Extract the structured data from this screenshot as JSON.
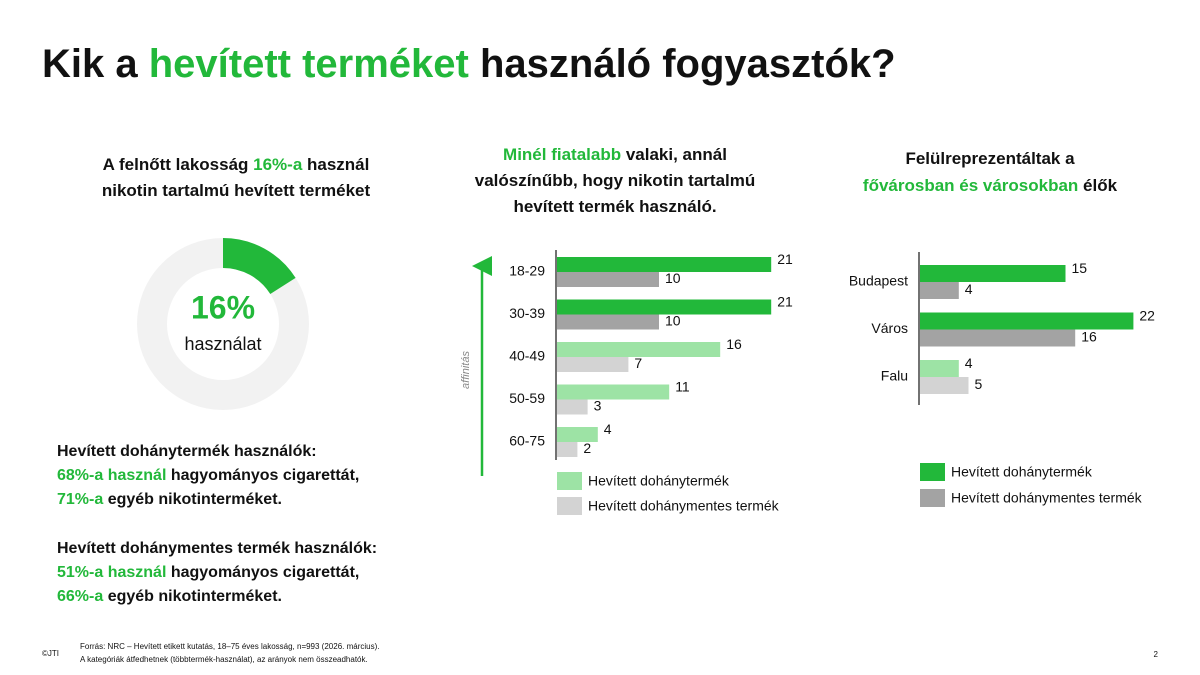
{
  "title": [
    [
      {
        "t": "Kik a "
      },
      {
        "t": "hevített terméket",
        "hl": true
      },
      {
        "t": " használó fogyasztók?"
      }
    ]
  ],
  "donut_heading": [
    [
      {
        "t": "A felnőtt lakosság "
      },
      {
        "t": "16%-a",
        "hl": true
      },
      {
        "t": " használ"
      }
    ],
    [
      {
        "t": "nikotin tartalmú hevített terméket"
      }
    ]
  ],
  "age_heading": [
    [
      {
        "t": "Minél fiatalabb",
        "hl": true
      },
      {
        "t": " valaki, annál"
      }
    ],
    [
      {
        "t": "valószínűbb, hogy nikotin tartalmú"
      }
    ],
    [
      {
        "t": "hevített termék használó."
      }
    ]
  ],
  "location_heading": [
    [
      {
        "t": "Felülreprezentáltak a"
      }
    ],
    [
      {
        "t": "fővárosban és városokban",
        "hl": true
      },
      {
        "t": " élők"
      }
    ]
  ],
  "paragraph_1": [
    [
      {
        "t": "Hevített dohánytermék használók:"
      }
    ],
    [
      {
        "t": "68%-a használ",
        "hl": true
      },
      {
        "t": " hagyományos cigarettát,"
      }
    ],
    [
      {
        "t": "71%-a",
        "hl": true
      },
      {
        "t": " egyéb nikotinterméket."
      }
    ]
  ],
  "paragraph_2": [
    [
      {
        "t": "Hevített dohánymentes termék használók:"
      }
    ],
    [
      {
        "t": "51%-a használ",
        "hl": true
      },
      {
        "t": " hagyományos cigarettát,"
      }
    ],
    [
      {
        "t": "66%-a",
        "hl": true
      },
      {
        "t": " egyéb nikotinterméket."
      }
    ]
  ],
  "footnote": [
    [
      {
        "t": "Forrás: NRC – Hevített etikett kutatás, 18–75 éves lakosság, n=993 (2026. március)."
      }
    ],
    [
      {
        "t": "A kategóriák átfedhetnek (többtermék-használat), az arányok nem összeadhatók."
      }
    ]
  ],
  "copyright": [
    [
      {
        "t": "©JTI"
      }
    ]
  ],
  "page_number": [
    [
      {
        "t": "2"
      }
    ]
  ],
  "chart_data": [
    {
      "type": "pie",
      "values": [
        16
      ],
      "value_labels": [
        "16%"
      ],
      "color": "#22b83a",
      "center_text": "használat"
    },
    {
      "type": "hbar",
      "categories": [
        "18-29",
        "30-39",
        "40-49",
        "50-59",
        "60-75"
      ],
      "axis_note": "affinitás",
      "series": [
        {
          "name": "Hevített dohánytermék",
          "color": "#9de3a5",
          "values": [
            21,
            21,
            16,
            11,
            4
          ],
          "colors": [
            "#22b83a",
            "#22b83a",
            "#9de3a5",
            "#9de3a5",
            "#9de3a5"
          ]
        },
        {
          "name": "Hevített dohánymentes termék",
          "color": "#d3d3d3",
          "values": [
            10,
            10,
            7,
            3,
            2
          ],
          "colors": [
            "#a3a3a3",
            "#a3a3a3",
            "#d3d3d3",
            "#d3d3d3",
            "#d3d3d3"
          ]
        }
      ]
    },
    {
      "type": "hbar",
      "categories": [
        "Budapest",
        "Város",
        "Falu"
      ],
      "series": [
        {
          "name": "Hevített dohánytermék",
          "color": "#22b83a",
          "values": [
            15,
            22,
            4
          ],
          "colors": [
            "#22b83a",
            "#22b83a",
            "#9de3a5"
          ]
        },
        {
          "name": "Hevített dohánymentes termék",
          "color": "#a3a3a3",
          "values": [
            4,
            16,
            5
          ],
          "colors": [
            "#a3a3a3",
            "#a3a3a3",
            "#d3d3d3"
          ]
        }
      ]
    }
  ]
}
